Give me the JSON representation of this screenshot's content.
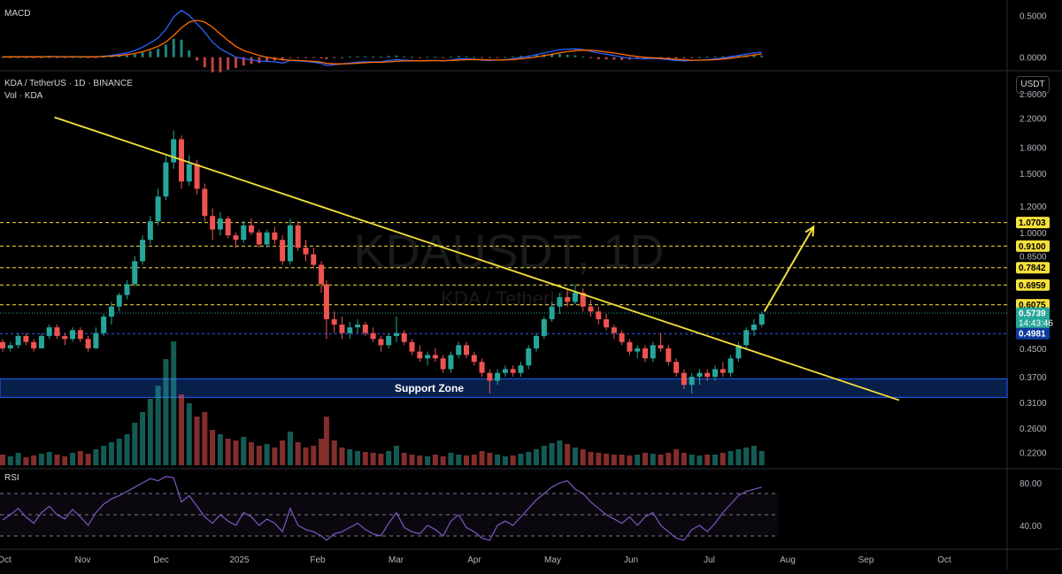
{
  "symbol_title": "KDA / TetherUS · 1D · BINANCE",
  "volume_label": "Vol · KDA",
  "currency": "USDT",
  "watermark": {
    "main": "KDAUSDT, 1D",
    "sub": "KDA / TetherUS"
  },
  "colors": {
    "up": "#26a69a",
    "down": "#ef5350",
    "trendline": "#f5e13a",
    "level": "#f5e13a",
    "support_fill": "#0b2a63",
    "support_stroke": "#2962ff",
    "macd": "#2962ff",
    "signal": "#ff6d00",
    "rsi": "#7e57c2",
    "price_label": "#26a69a",
    "blue_label": "#0d3a9e"
  },
  "chart_data": [
    {
      "name": "price",
      "type": "candlestick",
      "scale": "log",
      "ylim": [
        0.2,
        2.9
      ],
      "y_ticks": [
        "2.6000",
        "2.2000",
        "1.8000",
        "1.5000",
        "1.2000",
        "1.0000",
        "0.8500",
        "0.6075",
        "0.4500",
        "0.3700",
        "0.3100",
        "0.2600",
        "0.2200"
      ],
      "x_ticks": [
        "Oct",
        "Nov",
        "Dec",
        "2025",
        "Feb",
        "Mar",
        "Apr",
        "May",
        "Jun",
        "Jul",
        "Aug",
        "Sep",
        "Oct"
      ],
      "x_domain": [
        "2024-10-01",
        "2025-10-08"
      ],
      "candles": [
        [
          "2024-10-01",
          0.47,
          0.48,
          0.44,
          0.45
        ],
        [
          "2024-10-04",
          0.45,
          0.47,
          0.44,
          0.46
        ],
        [
          "2024-10-07",
          0.46,
          0.5,
          0.45,
          0.49
        ],
        [
          "2024-10-10",
          0.49,
          0.5,
          0.46,
          0.47
        ],
        [
          "2024-10-13",
          0.47,
          0.48,
          0.44,
          0.45
        ],
        [
          "2024-10-16",
          0.45,
          0.5,
          0.45,
          0.49
        ],
        [
          "2024-10-19",
          0.49,
          0.53,
          0.48,
          0.52
        ],
        [
          "2024-10-22",
          0.52,
          0.53,
          0.48,
          0.49
        ],
        [
          "2024-10-25",
          0.49,
          0.5,
          0.46,
          0.48
        ],
        [
          "2024-10-28",
          0.48,
          0.52,
          0.47,
          0.51
        ],
        [
          "2024-10-31",
          0.51,
          0.52,
          0.47,
          0.48
        ],
        [
          "2024-11-03",
          0.48,
          0.49,
          0.44,
          0.45
        ],
        [
          "2024-11-06",
          0.45,
          0.52,
          0.45,
          0.5
        ],
        [
          "2024-11-09",
          0.5,
          0.57,
          0.49,
          0.56
        ],
        [
          "2024-11-12",
          0.56,
          0.62,
          0.53,
          0.6
        ],
        [
          "2024-11-15",
          0.6,
          0.66,
          0.58,
          0.65
        ],
        [
          "2024-11-18",
          0.65,
          0.72,
          0.63,
          0.7
        ],
        [
          "2024-11-21",
          0.7,
          0.85,
          0.69,
          0.82
        ],
        [
          "2024-11-24",
          0.82,
          0.98,
          0.8,
          0.95
        ],
        [
          "2024-11-27",
          0.95,
          1.12,
          0.92,
          1.08
        ],
        [
          "2024-11-30",
          1.08,
          1.35,
          1.05,
          1.28
        ],
        [
          "2024-12-03",
          1.28,
          1.7,
          1.25,
          1.62
        ],
        [
          "2024-12-06",
          1.62,
          2.02,
          1.55,
          1.9
        ],
        [
          "2024-12-09",
          1.9,
          1.95,
          1.35,
          1.42
        ],
        [
          "2024-12-12",
          1.42,
          1.7,
          1.38,
          1.6
        ],
        [
          "2024-12-15",
          1.6,
          1.65,
          1.3,
          1.35
        ],
        [
          "2024-12-18",
          1.35,
          1.4,
          1.08,
          1.12
        ],
        [
          "2024-12-21",
          1.12,
          1.18,
          0.95,
          1.02
        ],
        [
          "2024-12-24",
          1.02,
          1.15,
          0.98,
          1.1
        ],
        [
          "2024-12-27",
          1.1,
          1.12,
          0.96,
          0.98
        ],
        [
          "2024-12-30",
          0.98,
          1.0,
          0.9,
          0.95
        ],
        [
          "2025-01-02",
          0.95,
          1.08,
          0.93,
          1.05
        ],
        [
          "2025-01-05",
          1.05,
          1.1,
          0.98,
          1.0
        ],
        [
          "2025-01-08",
          1.0,
          1.02,
          0.9,
          0.92
        ],
        [
          "2025-01-11",
          0.92,
          1.02,
          0.9,
          1.0
        ],
        [
          "2025-01-14",
          1.0,
          1.04,
          0.92,
          0.95
        ],
        [
          "2025-01-17",
          0.95,
          0.98,
          0.8,
          0.82
        ],
        [
          "2025-01-20",
          0.82,
          1.1,
          0.8,
          1.05
        ],
        [
          "2025-01-23",
          1.05,
          1.08,
          0.88,
          0.9
        ],
        [
          "2025-01-26",
          0.9,
          0.95,
          0.82,
          0.86
        ],
        [
          "2025-01-29",
          0.86,
          0.9,
          0.78,
          0.8
        ],
        [
          "2025-02-01",
          0.8,
          0.82,
          0.66,
          0.7
        ],
        [
          "2025-02-03",
          0.7,
          0.72,
          0.48,
          0.55
        ],
        [
          "2025-02-06",
          0.55,
          0.58,
          0.5,
          0.53
        ],
        [
          "2025-02-09",
          0.53,
          0.56,
          0.48,
          0.5
        ],
        [
          "2025-02-12",
          0.5,
          0.54,
          0.48,
          0.52
        ],
        [
          "2025-02-15",
          0.52,
          0.55,
          0.5,
          0.53
        ],
        [
          "2025-02-18",
          0.53,
          0.54,
          0.49,
          0.5
        ],
        [
          "2025-02-21",
          0.5,
          0.52,
          0.47,
          0.48
        ],
        [
          "2025-02-24",
          0.48,
          0.49,
          0.44,
          0.46
        ],
        [
          "2025-02-27",
          0.46,
          0.5,
          0.45,
          0.49
        ],
        [
          "2025-03-02",
          0.49,
          0.56,
          0.47,
          0.5
        ],
        [
          "2025-03-05",
          0.5,
          0.51,
          0.46,
          0.47
        ],
        [
          "2025-03-08",
          0.47,
          0.48,
          0.43,
          0.44
        ],
        [
          "2025-03-11",
          0.44,
          0.46,
          0.41,
          0.42
        ],
        [
          "2025-03-14",
          0.42,
          0.44,
          0.4,
          0.43
        ],
        [
          "2025-03-17",
          0.43,
          0.45,
          0.41,
          0.42
        ],
        [
          "2025-03-20",
          0.42,
          0.43,
          0.38,
          0.39
        ],
        [
          "2025-03-23",
          0.39,
          0.44,
          0.38,
          0.43
        ],
        [
          "2025-03-26",
          0.43,
          0.47,
          0.42,
          0.46
        ],
        [
          "2025-03-29",
          0.46,
          0.47,
          0.42,
          0.43
        ],
        [
          "2025-04-01",
          0.43,
          0.44,
          0.4,
          0.41
        ],
        [
          "2025-04-04",
          0.41,
          0.42,
          0.37,
          0.38
        ],
        [
          "2025-04-07",
          0.38,
          0.39,
          0.33,
          0.36
        ],
        [
          "2025-04-10",
          0.36,
          0.39,
          0.35,
          0.38
        ],
        [
          "2025-04-13",
          0.38,
          0.4,
          0.37,
          0.39
        ],
        [
          "2025-04-16",
          0.39,
          0.4,
          0.37,
          0.38
        ],
        [
          "2025-04-19",
          0.38,
          0.41,
          0.37,
          0.4
        ],
        [
          "2025-04-22",
          0.4,
          0.46,
          0.39,
          0.45
        ],
        [
          "2025-04-25",
          0.45,
          0.5,
          0.44,
          0.49
        ],
        [
          "2025-04-28",
          0.49,
          0.56,
          0.48,
          0.55
        ],
        [
          "2025-05-01",
          0.55,
          0.62,
          0.54,
          0.6
        ],
        [
          "2025-05-04",
          0.6,
          0.66,
          0.57,
          0.64
        ],
        [
          "2025-05-07",
          0.64,
          0.68,
          0.6,
          0.62
        ],
        [
          "2025-05-10",
          0.62,
          0.7,
          0.61,
          0.66
        ],
        [
          "2025-05-13",
          0.66,
          0.68,
          0.58,
          0.6
        ],
        [
          "2025-05-16",
          0.6,
          0.63,
          0.56,
          0.58
        ],
        [
          "2025-05-19",
          0.58,
          0.6,
          0.53,
          0.55
        ],
        [
          "2025-05-22",
          0.55,
          0.57,
          0.51,
          0.52
        ],
        [
          "2025-05-25",
          0.52,
          0.53,
          0.48,
          0.5
        ],
        [
          "2025-05-28",
          0.5,
          0.51,
          0.46,
          0.47
        ],
        [
          "2025-05-31",
          0.47,
          0.48,
          0.43,
          0.44
        ],
        [
          "2025-06-03",
          0.44,
          0.46,
          0.42,
          0.45
        ],
        [
          "2025-06-06",
          0.45,
          0.46,
          0.41,
          0.42
        ],
        [
          "2025-06-09",
          0.42,
          0.47,
          0.41,
          0.46
        ],
        [
          "2025-06-12",
          0.46,
          0.5,
          0.44,
          0.45
        ],
        [
          "2025-06-15",
          0.45,
          0.46,
          0.4,
          0.41
        ],
        [
          "2025-06-18",
          0.41,
          0.42,
          0.37,
          0.38
        ],
        [
          "2025-06-21",
          0.38,
          0.39,
          0.34,
          0.35
        ],
        [
          "2025-06-24",
          0.35,
          0.38,
          0.33,
          0.37
        ],
        [
          "2025-06-27",
          0.37,
          0.39,
          0.35,
          0.38
        ],
        [
          "2025-06-30",
          0.38,
          0.39,
          0.36,
          0.37
        ],
        [
          "2025-07-03",
          0.37,
          0.4,
          0.36,
          0.39
        ],
        [
          "2025-07-06",
          0.39,
          0.41,
          0.37,
          0.38
        ],
        [
          "2025-07-09",
          0.38,
          0.43,
          0.37,
          0.42
        ],
        [
          "2025-07-12",
          0.42,
          0.47,
          0.41,
          0.46
        ],
        [
          "2025-07-15",
          0.46,
          0.52,
          0.45,
          0.51
        ],
        [
          "2025-07-18",
          0.51,
          0.55,
          0.49,
          0.53
        ],
        [
          "2025-07-21",
          0.53,
          0.58,
          0.52,
          0.57
        ]
      ],
      "levels": [
        1.0703,
        0.91,
        0.7842,
        0.6959,
        0.6075
      ],
      "price_labels": [
        {
          "value": 1.0703,
          "text": "1.0703",
          "style": "yellow"
        },
        {
          "value": 0.91,
          "text": "0.9100",
          "style": "yellow"
        },
        {
          "value": 0.7842,
          "text": "0.7842",
          "style": "yellow"
        },
        {
          "value": 0.6959,
          "text": "0.6959",
          "style": "yellow"
        },
        {
          "value": 0.6075,
          "text": "0.6075",
          "style": "yellow"
        },
        {
          "value": 0.5739,
          "text": "0.5739",
          "countdown": "14:43:46",
          "style": "green"
        },
        {
          "value": 0.4981,
          "text": "0.4981",
          "style": "blue"
        }
      ],
      "blue_dashed_level": 0.4981,
      "current_dotted_level": 0.5739,
      "trendline": [
        [
          "2024-10-21",
          2.21
        ],
        [
          "2025-09-12",
          0.315
        ]
      ],
      "arrow": [
        [
          "2025-07-22",
          0.58
        ],
        [
          "2025-08-10",
          1.04
        ]
      ],
      "support_zone": {
        "low": 0.321,
        "high": 0.365,
        "label": "Support Zone"
      }
    },
    {
      "name": "volume",
      "type": "bar",
      "values": [
        12,
        10,
        14,
        9,
        11,
        13,
        15,
        12,
        10,
        14,
        16,
        13,
        18,
        22,
        26,
        30,
        35,
        48,
        60,
        75,
        90,
        120,
        140,
        80,
        70,
        55,
        60,
        40,
        35,
        30,
        28,
        32,
        26,
        22,
        24,
        20,
        28,
        38,
        26,
        20,
        22,
        30,
        55,
        28,
        20,
        18,
        16,
        15,
        14,
        13,
        16,
        22,
        14,
        12,
        11,
        10,
        12,
        10,
        14,
        12,
        11,
        12,
        16,
        14,
        12,
        10,
        11,
        13,
        15,
        18,
        22,
        25,
        28,
        24,
        20,
        18,
        15,
        14,
        13,
        12,
        12,
        11,
        12,
        14,
        13,
        12,
        14,
        18,
        14,
        12,
        11,
        12,
        12,
        14,
        16,
        18,
        20,
        22,
        16
      ]
    },
    {
      "name": "macd",
      "type": "line",
      "y_ticks": [
        "0.5000",
        "0.0000"
      ],
      "ylim": [
        -0.12,
        0.62
      ],
      "macd": [
        0.005,
        0.004,
        0.006,
        0.005,
        0.003,
        0.006,
        0.008,
        0.007,
        0.005,
        0.007,
        0.006,
        0.002,
        0.004,
        0.012,
        0.022,
        0.035,
        0.05,
        0.08,
        0.12,
        0.17,
        0.23,
        0.33,
        0.48,
        0.56,
        0.5,
        0.4,
        0.3,
        0.18,
        0.1,
        0.05,
        0.0,
        -0.02,
        -0.03,
        -0.05,
        -0.05,
        -0.055,
        -0.07,
        -0.04,
        -0.045,
        -0.05,
        -0.06,
        -0.075,
        -0.1,
        -0.09,
        -0.08,
        -0.07,
        -0.06,
        -0.055,
        -0.055,
        -0.055,
        -0.04,
        -0.03,
        -0.035,
        -0.04,
        -0.045,
        -0.04,
        -0.04,
        -0.045,
        -0.035,
        -0.02,
        -0.02,
        -0.025,
        -0.035,
        -0.04,
        -0.035,
        -0.03,
        -0.02,
        -0.005,
        0.01,
        0.03,
        0.05,
        0.07,
        0.09,
        0.095,
        0.1,
        0.09,
        0.07,
        0.05,
        0.035,
        0.02,
        0.0,
        -0.01,
        -0.015,
        -0.02,
        -0.015,
        -0.02,
        -0.03,
        -0.04,
        -0.045,
        -0.04,
        -0.035,
        -0.03,
        -0.02,
        -0.01,
        0.005,
        0.02,
        0.035,
        0.05,
        0.06
      ],
      "signal": [
        0.004,
        0.004,
        0.005,
        0.005,
        0.004,
        0.005,
        0.006,
        0.006,
        0.006,
        0.006,
        0.006,
        0.005,
        0.005,
        0.008,
        0.013,
        0.02,
        0.03,
        0.045,
        0.065,
        0.095,
        0.13,
        0.18,
        0.26,
        0.35,
        0.42,
        0.44,
        0.42,
        0.36,
        0.28,
        0.2,
        0.13,
        0.08,
        0.05,
        0.02,
        0.0,
        -0.015,
        -0.03,
        -0.035,
        -0.04,
        -0.045,
        -0.05,
        -0.06,
        -0.075,
        -0.08,
        -0.08,
        -0.078,
        -0.072,
        -0.066,
        -0.062,
        -0.06,
        -0.055,
        -0.05,
        -0.045,
        -0.044,
        -0.044,
        -0.043,
        -0.042,
        -0.042,
        -0.04,
        -0.035,
        -0.03,
        -0.028,
        -0.03,
        -0.033,
        -0.034,
        -0.032,
        -0.028,
        -0.02,
        -0.01,
        0.003,
        0.018,
        0.035,
        0.052,
        0.066,
        0.078,
        0.084,
        0.082,
        0.074,
        0.062,
        0.05,
        0.034,
        0.02,
        0.008,
        -0.002,
        -0.008,
        -0.012,
        -0.018,
        -0.025,
        -0.032,
        -0.036,
        -0.036,
        -0.034,
        -0.03,
        -0.022,
        -0.012,
        0.0,
        0.012,
        0.026,
        0.04
      ]
    },
    {
      "name": "rsi",
      "type": "line",
      "y_ticks": [
        "80.00",
        "40.00"
      ],
      "ylim": [
        20,
        90
      ],
      "bands": [
        70,
        50,
        30
      ],
      "values": [
        45,
        50,
        56,
        48,
        42,
        52,
        58,
        50,
        46,
        55,
        48,
        40,
        52,
        60,
        65,
        68,
        72,
        76,
        80,
        84,
        82,
        86,
        85,
        62,
        68,
        58,
        48,
        42,
        50,
        44,
        40,
        52,
        48,
        40,
        46,
        42,
        34,
        56,
        40,
        36,
        34,
        30,
        26,
        32,
        34,
        38,
        42,
        36,
        32,
        30,
        42,
        52,
        38,
        34,
        32,
        40,
        36,
        30,
        44,
        50,
        38,
        34,
        28,
        26,
        40,
        44,
        40,
        48,
        56,
        64,
        70,
        76,
        80,
        82,
        74,
        70,
        62,
        56,
        50,
        46,
        42,
        48,
        40,
        48,
        52,
        40,
        34,
        28,
        26,
        36,
        40,
        34,
        42,
        52,
        60,
        68,
        72,
        74,
        76
      ]
    }
  ]
}
